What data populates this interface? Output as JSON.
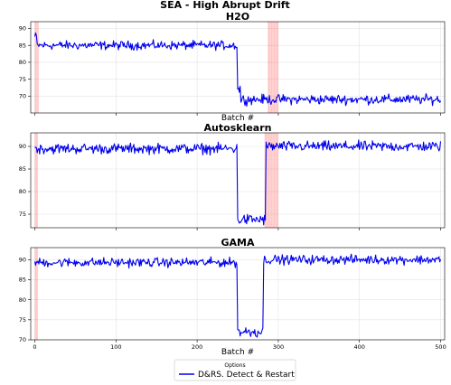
{
  "chart_data": {
    "suptitle": "SEA - High Abrupt Drift",
    "type": "line",
    "panels": [
      {
        "title": "H2O",
        "xlabel": "Batch #",
        "xlim": [
          -5,
          505
        ],
        "ylim": [
          65,
          92
        ],
        "yticks": [
          70,
          75,
          80,
          85,
          90
        ],
        "ytick_labels": [
          "70",
          "75",
          "80",
          "85",
          "90"
        ],
        "xticks": [],
        "xtick_labels": [],
        "drift_regions": [
          [
            0,
            5
          ],
          [
            287,
            300
          ]
        ],
        "series": [
          {
            "color": "#0000ee",
            "segments": [
              {
                "x_start": 0,
                "x_end": 2,
                "base": 87.5,
                "noise": 1.0
              },
              {
                "x_start": 3,
                "x_end": 249,
                "base": 85,
                "noise": 0.9
              },
              {
                "x_start": 250,
                "x_end": 253,
                "base": 72,
                "noise": 1.5
              },
              {
                "x_start": 254,
                "x_end": 500,
                "base": 69,
                "noise": 1.0
              }
            ]
          }
        ]
      },
      {
        "title": "Autosklearn",
        "xlabel": "",
        "xlim": [
          -5,
          505
        ],
        "ylim": [
          72,
          93
        ],
        "yticks": [
          75,
          80,
          85,
          90
        ],
        "ytick_labels": [
          "75",
          "80",
          "85",
          "90"
        ],
        "xticks": [],
        "xtick_labels": [],
        "drift_regions": [
          [
            0,
            4
          ],
          [
            283,
            300
          ]
        ],
        "series": [
          {
            "color": "#0000ee",
            "segments": [
              {
                "x_start": 0,
                "x_end": 249,
                "base": 89.5,
                "noise": 0.8
              },
              {
                "x_start": 250,
                "x_end": 284,
                "base": 73.8,
                "noise": 0.9
              },
              {
                "x_start": 285,
                "x_end": 500,
                "base": 90,
                "noise": 0.8
              }
            ]
          }
        ]
      },
      {
        "title": "GAMA",
        "xlabel": "Batch #",
        "xlim": [
          -5,
          505
        ],
        "ylim": [
          70,
          93
        ],
        "yticks": [
          70,
          75,
          80,
          85,
          90
        ],
        "ytick_labels": [
          "70",
          "75",
          "80",
          "85",
          "90"
        ],
        "xticks": [
          0,
          100,
          200,
          300,
          400,
          500
        ],
        "xtick_labels": [
          "0",
          "100",
          "200",
          "300",
          "400",
          "500"
        ],
        "drift_regions": [
          [
            0,
            4
          ]
        ],
        "series": [
          {
            "color": "#0000ee",
            "segments": [
              {
                "x_start": 0,
                "x_end": 249,
                "base": 89.3,
                "noise": 0.8
              },
              {
                "x_start": 250,
                "x_end": 281,
                "base": 72,
                "noise": 1.0
              },
              {
                "x_start": 282,
                "x_end": 500,
                "base": 90,
                "noise": 0.8
              }
            ]
          }
        ]
      }
    ],
    "legend": {
      "title": "Options",
      "placement": "bottom-center",
      "entries": [
        {
          "label": "D&RS. Detect & Restart",
          "color": "#0000ee"
        }
      ]
    },
    "grid": true
  }
}
